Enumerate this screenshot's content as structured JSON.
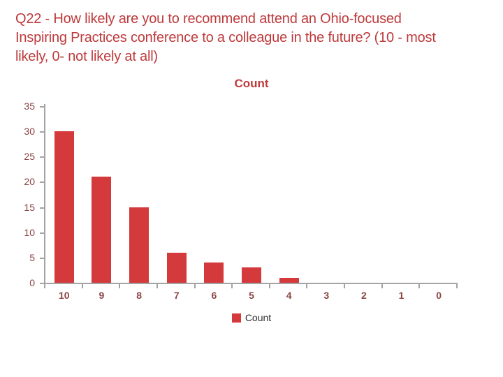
{
  "slide": {
    "question_title_lines": [
      "Q22 - How likely are you to recommend attend an Ohio-focused",
      "Inspiring Practices conference to a colleague in the future? (10 - most",
      "likely, 0- not likely at all)"
    ]
  },
  "chart_data": {
    "type": "bar",
    "title": "Count",
    "categories": [
      "10",
      "9",
      "8",
      "7",
      "6",
      "5",
      "4",
      "3",
      "2",
      "1",
      "0"
    ],
    "values": [
      30,
      21,
      15,
      6,
      4,
      3,
      1,
      0,
      0,
      0,
      0
    ],
    "series_name": "Count",
    "xlabel": "",
    "ylabel": "",
    "ylim": [
      0,
      35
    ],
    "yticks": [
      0,
      5,
      10,
      15,
      20,
      25,
      30,
      35
    ],
    "grid": false,
    "legend": {
      "label": "Count",
      "position": "bottom"
    }
  },
  "colors": {
    "bar": "#d4393b",
    "title_text": "#be3a3c",
    "axis_line": "#a3a3a3",
    "tick_label_text": "#8b4546",
    "legend_text": "#2e2e2e",
    "background": "#ffffff"
  }
}
